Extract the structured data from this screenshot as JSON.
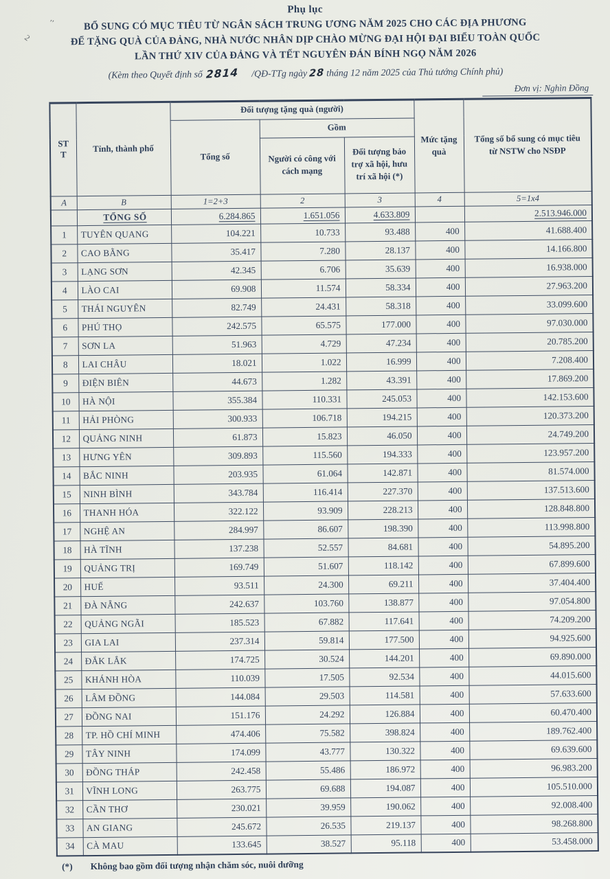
{
  "page": {
    "ink_marks": {
      "m1": "ʹʹ",
      "m2": "2"
    },
    "phu_luc": "Phụ lục",
    "title_line1": "BỔ SUNG CÓ MỤC TIÊU TỪ NGÂN SÁCH TRUNG ƯƠNG NĂM 2025 CHO CÁC ĐỊA PHƯƠNG",
    "title_line2": "ĐỂ TẶNG QUÀ CỦA ĐẢNG, NHÀ NƯỚC NHÂN DỊP CHÀO MỪNG ĐẠI HỘI ĐẠI BIỂU TOÀN QUỐC",
    "title_line3": "LẦN THỨ XIV CỦA ĐẢNG VÀ TẾT NGUYÊN ĐÁN BÍNH NGỌ NĂM 2026",
    "subtitle": {
      "prefix": "(Kèm theo Quyết định số",
      "decision_number": "2814",
      "mid": "/QĐ-TTg ngày",
      "decision_day": "28",
      "suffix": "tháng 12 năm 2025 của Thủ tướng Chính phủ)"
    },
    "unit_label": "Đơn vị: Nghìn Đồng"
  },
  "table": {
    "header": {
      "stt": "ST\nT",
      "province": "Tỉnh, thành phố",
      "group_recipients": "Đối tượng tặng quà (người)",
      "total": "Tổng số",
      "including": "Gồm",
      "revolution": "Người có công với cách mạng",
      "social": "Đối tượng bảo trợ xã hội, hưu trí xã hội (*)",
      "gift_level": "Mức tặng quà",
      "total_supplement": "Tổng số bổ sung có mục tiêu từ NSTW cho NSĐP"
    },
    "code_row": [
      "A",
      "B",
      "1=2+3",
      "2",
      "3",
      "4",
      "5=1x4"
    ],
    "total_row": {
      "label": "TỔNG SỐ",
      "cells": [
        "6.284.865",
        "1.651.056",
        "4.633.809",
        "",
        "2.513.946.000"
      ]
    },
    "rows": [
      [
        "1",
        "TUYÊN QUANG",
        "104.221",
        "10.733",
        "93.488",
        "400",
        "41.688.400"
      ],
      [
        "2",
        "CAO BẰNG",
        "35.417",
        "7.280",
        "28.137",
        "400",
        "14.166.800"
      ],
      [
        "3",
        "LẠNG SƠN",
        "42.345",
        "6.706",
        "35.639",
        "400",
        "16.938.000"
      ],
      [
        "4",
        "LÀO CAI",
        "69.908",
        "11.574",
        "58.334",
        "400",
        "27.963.200"
      ],
      [
        "5",
        "THÁI NGUYÊN",
        "82.749",
        "24.431",
        "58.318",
        "400",
        "33.099.600"
      ],
      [
        "6",
        "PHÚ THỌ",
        "242.575",
        "65.575",
        "177.000",
        "400",
        "97.030.000"
      ],
      [
        "7",
        "SƠN LA",
        "51.963",
        "4.729",
        "47.234",
        "400",
        "20.785.200"
      ],
      [
        "8",
        "LAI CHÂU",
        "18.021",
        "1.022",
        "16.999",
        "400",
        "7.208.400"
      ],
      [
        "9",
        "ĐIỆN BIÊN",
        "44.673",
        "1.282",
        "43.391",
        "400",
        "17.869.200"
      ],
      [
        "10",
        "HÀ NỘI",
        "355.384",
        "110.331",
        "245.053",
        "400",
        "142.153.600"
      ],
      [
        "11",
        "HẢI PHÒNG",
        "300.933",
        "106.718",
        "194.215",
        "400",
        "120.373.200"
      ],
      [
        "12",
        "QUẢNG NINH",
        "61.873",
        "15.823",
        "46.050",
        "400",
        "24.749.200"
      ],
      [
        "13",
        "HƯNG YÊN",
        "309.893",
        "115.560",
        "194.333",
        "400",
        "123.957.200"
      ],
      [
        "14",
        "BẮC NINH",
        "203.935",
        "61.064",
        "142.871",
        "400",
        "81.574.000"
      ],
      [
        "15",
        "NINH BÌNH",
        "343.784",
        "116.414",
        "227.370",
        "400",
        "137.513.600"
      ],
      [
        "16",
        "THANH HÓA",
        "322.122",
        "93.909",
        "228.213",
        "400",
        "128.848.800"
      ],
      [
        "17",
        "NGHỆ AN",
        "284.997",
        "86.607",
        "198.390",
        "400",
        "113.998.800"
      ],
      [
        "18",
        "HÀ TĨNH",
        "137.238",
        "52.557",
        "84.681",
        "400",
        "54.895.200"
      ],
      [
        "19",
        "QUẢNG TRỊ",
        "169.749",
        "51.607",
        "118.142",
        "400",
        "67.899.600"
      ],
      [
        "20",
        "HUẾ",
        "93.511",
        "24.300",
        "69.211",
        "400",
        "37.404.400"
      ],
      [
        "21",
        "ĐÀ NẴNG",
        "242.637",
        "103.760",
        "138.877",
        "400",
        "97.054.800"
      ],
      [
        "22",
        "QUẢNG NGÃI",
        "185.523",
        "67.882",
        "117.641",
        "400",
        "74.209.200"
      ],
      [
        "23",
        "GIA LAI",
        "237.314",
        "59.814",
        "177.500",
        "400",
        "94.925.600"
      ],
      [
        "24",
        "ĐẮK LẮK",
        "174.725",
        "30.524",
        "144.201",
        "400",
        "69.890.000"
      ],
      [
        "25",
        "KHÁNH HÒA",
        "110.039",
        "17.505",
        "92.534",
        "400",
        "44.015.600"
      ],
      [
        "26",
        "LÂM ĐỒNG",
        "144.084",
        "29.503",
        "114.581",
        "400",
        "57.633.600"
      ],
      [
        "27",
        "ĐỒNG NAI",
        "151.176",
        "24.292",
        "126.884",
        "400",
        "60.470.400"
      ],
      [
        "28",
        "TP. HỒ CHÍ MINH",
        "474.406",
        "75.582",
        "398.824",
        "400",
        "189.762.400"
      ],
      [
        "29",
        "TÂY NINH",
        "174.099",
        "43.777",
        "130.322",
        "400",
        "69.639.600"
      ],
      [
        "30",
        "ĐỒNG THÁP",
        "242.458",
        "55.486",
        "186.972",
        "400",
        "96.983.200"
      ],
      [
        "31",
        "VĨNH LONG",
        "263.775",
        "69.688",
        "194.087",
        "400",
        "105.510.000"
      ],
      [
        "32",
        "CẦN THƠ",
        "230.021",
        "39.959",
        "190.062",
        "400",
        "92.008.400"
      ],
      [
        "33",
        "AN GIANG",
        "245.672",
        "26.535",
        "219.137",
        "400",
        "98.268.800"
      ],
      [
        "34",
        "CÀ MAU",
        "133.645",
        "38.527",
        "95.118",
        "400",
        "53.458.000"
      ]
    ]
  },
  "footnote": {
    "symbol": "(*)",
    "text": "Không bao gồm đối tượng nhận chăm sóc, nuôi dưỡng"
  }
}
